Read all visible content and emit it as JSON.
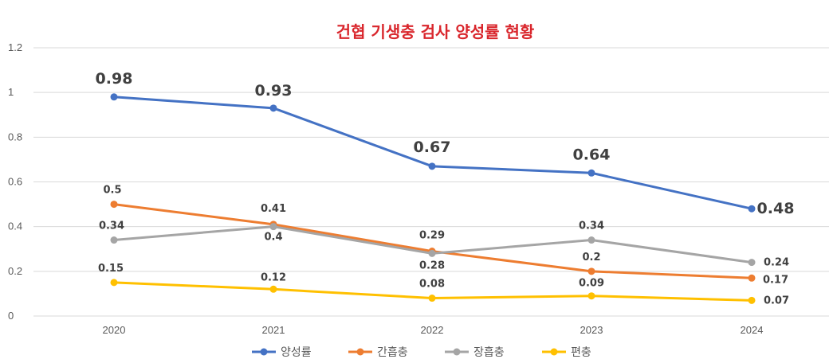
{
  "chart_data": {
    "type": "line",
    "title": "건협 기생충 검사 양성률 현황",
    "title_color": "#d9262c",
    "categories": [
      "2020",
      "2021",
      "2022",
      "2023",
      "2024"
    ],
    "ylim": [
      0,
      1.2
    ],
    "yticks": [
      "0",
      "0.2",
      "0.4",
      "0.6",
      "0.8",
      "1",
      "1.2"
    ],
    "grid": true,
    "legend_position": "bottom",
    "series": [
      {
        "name": "양성률",
        "color": "#4472c4",
        "values": [
          0.98,
          0.93,
          0.67,
          0.64,
          0.48
        ],
        "labels": [
          "0.98",
          "0.93",
          "0.67",
          "0.64",
          "0.48"
        ]
      },
      {
        "name": "간흡충",
        "color": "#ed7d31",
        "values": [
          0.5,
          0.41,
          0.29,
          0.2,
          0.17
        ],
        "labels": [
          "0.5",
          "0.41",
          "0.29",
          "0.2",
          "0.17"
        ]
      },
      {
        "name": "장흡충",
        "color": "#a5a5a5",
        "values": [
          0.34,
          0.4,
          0.28,
          0.34,
          0.24
        ],
        "labels": [
          "0.34",
          "0.4",
          "0.28",
          "0.34",
          "0.24"
        ]
      },
      {
        "name": "편충",
        "color": "#ffc000",
        "values": [
          0.15,
          0.12,
          0.08,
          0.09,
          0.07
        ],
        "labels": [
          "0.15",
          "0.12",
          "0.08",
          "0.09",
          "0.07"
        ]
      }
    ]
  }
}
